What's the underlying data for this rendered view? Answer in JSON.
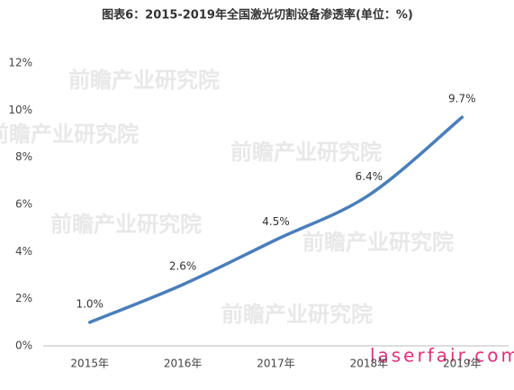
{
  "chart_data": {
    "type": "line",
    "title": "图表6：2015-2019年全国激光切割设备渗透率(单位：%)",
    "categories": [
      "2015年",
      "2016年",
      "2017年",
      "2018年",
      "2019年"
    ],
    "series": [
      {
        "name": "激光切割设备渗透率",
        "color": "#4a7ebb",
        "values": [
          1.0,
          2.6,
          4.5,
          6.4,
          9.7
        ],
        "value_labels": [
          "1.0%",
          "2.6%",
          "4.5%",
          "6.4%",
          "9.7%"
        ]
      }
    ],
    "ylim": [
      0,
      12
    ],
    "yticks": [
      {
        "value": 0,
        "label": "0%"
      },
      {
        "value": 2,
        "label": "2%"
      },
      {
        "value": 4,
        "label": "4%"
      },
      {
        "value": 6,
        "label": "6%"
      },
      {
        "value": 8,
        "label": "8%"
      },
      {
        "value": 10,
        "label": "10%"
      },
      {
        "value": 12,
        "label": "12%"
      }
    ],
    "grid": false,
    "watermark": "laserfair.com",
    "brand_watermark": "前瞻产业研究院"
  }
}
